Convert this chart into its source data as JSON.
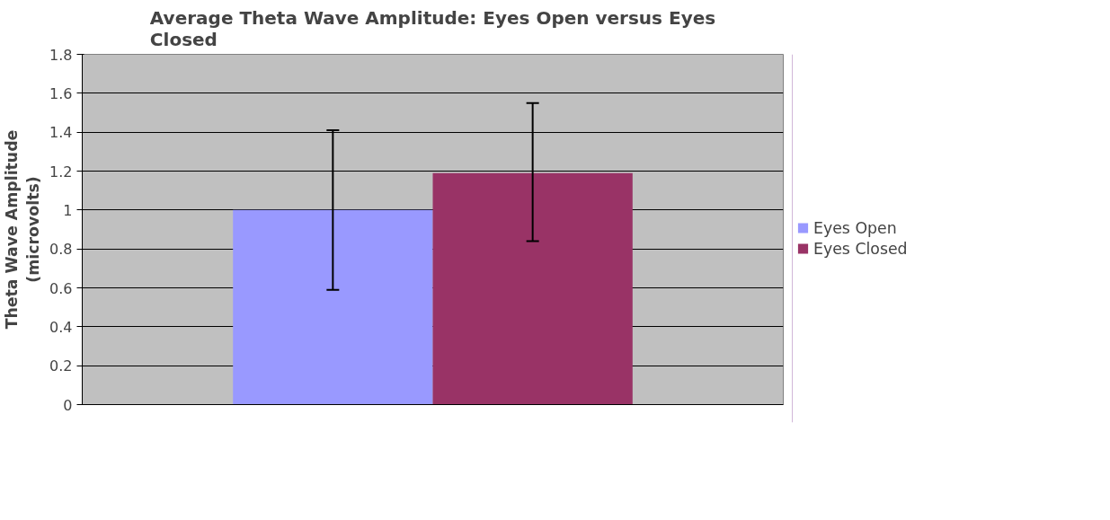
{
  "chart_data": {
    "type": "bar",
    "title": "Average Theta Wave Amplitude: Eyes Open versus Eyes Closed",
    "ylabel": "Theta Wave Amplitude (microvolts)",
    "categories": [
      null
    ],
    "series": [
      {
        "name": "Eyes Open",
        "color": "#9999ff",
        "values": [
          1.0
        ],
        "errors": [
          [
            0.59,
            1.41
          ]
        ]
      },
      {
        "name": "Eyes Closed",
        "color": "#993366",
        "values": [
          1.19
        ],
        "errors": [
          [
            0.84,
            1.55
          ]
        ]
      }
    ],
    "ylim": [
      0,
      1.8
    ],
    "yticks": [
      0,
      0.2,
      0.4,
      0.6,
      0.8,
      1,
      1.2,
      1.4,
      1.6,
      1.8
    ],
    "grid": "y",
    "legend": "right"
  }
}
